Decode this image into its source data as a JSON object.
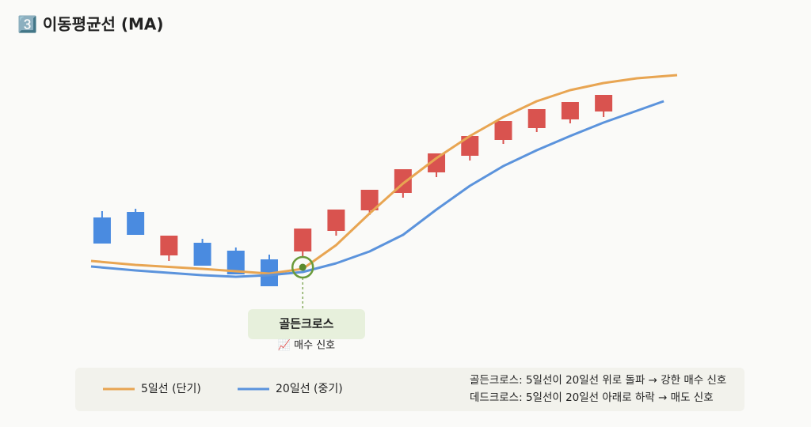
{
  "chart_data": {
    "type": "candlestick",
    "title": "3️⃣ 이동평균선 (MA)",
    "xlim": [
      -0.33,
      17.2
    ],
    "ylim": [
      0,
      320
    ],
    "up_color": "#d9534f",
    "down_color": "#4a8be0",
    "candles": [
      {
        "open": 125,
        "close": 92,
        "high": 133,
        "low": 92
      },
      {
        "open": 132,
        "close": 103,
        "high": 136,
        "low": 103
      },
      {
        "open": 77,
        "close": 102,
        "high": 102,
        "low": 70
      },
      {
        "open": 93,
        "close": 64,
        "high": 98,
        "low": 64
      },
      {
        "open": 83,
        "close": 53,
        "high": 87,
        "low": 53
      },
      {
        "open": 72,
        "close": 38,
        "high": 78,
        "low": 38
      },
      {
        "open": 82,
        "close": 111,
        "high": 111,
        "low": 75
      },
      {
        "open": 108,
        "close": 135,
        "high": 135,
        "low": 102
      },
      {
        "open": 134,
        "close": 160,
        "high": 160,
        "low": 128
      },
      {
        "open": 156,
        "close": 186,
        "high": 186,
        "low": 150
      },
      {
        "open": 182,
        "close": 206,
        "high": 206,
        "low": 176
      },
      {
        "open": 203,
        "close": 228,
        "high": 228,
        "low": 197
      },
      {
        "open": 223,
        "close": 247,
        "high": 247,
        "low": 218
      },
      {
        "open": 238,
        "close": 262,
        "high": 262,
        "low": 233
      },
      {
        "open": 249,
        "close": 271,
        "high": 271,
        "low": 244
      },
      {
        "open": 259,
        "close": 280,
        "high": 280,
        "low": 252
      }
    ],
    "series": [
      {
        "name": "5일선 (단기)",
        "color": "#e8a552",
        "x": [
          -0.33,
          1,
          3,
          5,
          6,
          7,
          8,
          9,
          10,
          11,
          12,
          13,
          14,
          15,
          16,
          17.2
        ],
        "values": [
          70,
          65,
          60,
          54,
          60,
          90,
          130,
          168,
          200,
          228,
          252,
          272,
          286,
          295,
          301,
          305
        ]
      },
      {
        "name": "20일선 (중기)",
        "color": "#5b93dc",
        "x": [
          -0.33,
          1,
          3,
          4,
          5,
          6,
          7,
          8,
          9,
          10,
          11,
          12,
          13,
          14,
          15,
          16,
          16.8
        ],
        "values": [
          63,
          58,
          52,
          50,
          52,
          56,
          67,
          82,
          103,
          135,
          165,
          190,
          210,
          228,
          245,
          260,
          272
        ]
      }
    ],
    "annotation": {
      "x": 6,
      "y": 62,
      "title": "골든크로스",
      "subtitle": "📈 매수 신호"
    },
    "notes": [
      "골든크로스: 5일선이 20일선 위로 돌파 → 강한 매수 신호",
      "데드크로스: 5일선이 20일선 아래로 하락 → 매도 신호"
    ]
  }
}
